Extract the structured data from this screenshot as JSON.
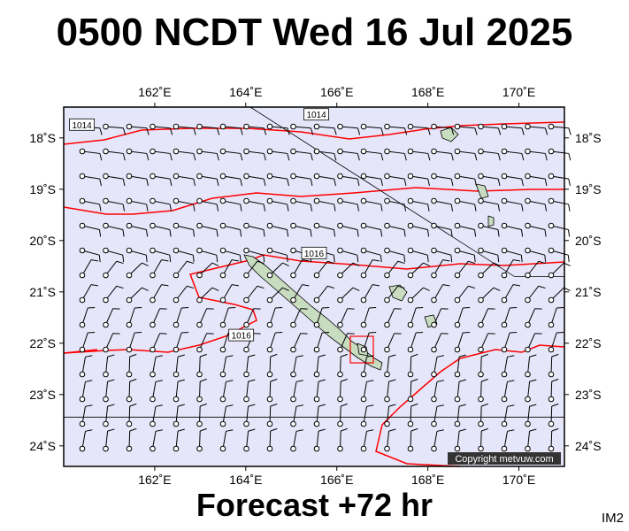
{
  "title": "0500 NCDT Wed 16 Jul 2025",
  "subtitle": "Forecast +72 hr",
  "corner_label": "IM2",
  "copyright": "Copyright metvuw.com",
  "map": {
    "lon_range": [
      160.0,
      171.0
    ],
    "lat_range": [
      -24.4,
      -17.4
    ],
    "lon_ticks": [
      {
        "value": 162,
        "label": "162˚E"
      },
      {
        "value": 164,
        "label": "164˚E"
      },
      {
        "value": 166,
        "label": "166˚E"
      },
      {
        "value": 168,
        "label": "168˚E"
      },
      {
        "value": 170,
        "label": "170˚E"
      }
    ],
    "lat_ticks": [
      {
        "value": -18,
        "label": "18˚S"
      },
      {
        "value": -19,
        "label": "19˚S"
      },
      {
        "value": -20,
        "label": "20˚S"
      },
      {
        "value": -21,
        "label": "21˚S"
      },
      {
        "value": -22,
        "label": "22˚S"
      },
      {
        "value": -23,
        "label": "23˚S"
      },
      {
        "value": -24,
        "label": "24˚S"
      }
    ],
    "colors": {
      "ocean": "#e6e6fa",
      "land": "#c8dcc0",
      "isobar": "#ff0000",
      "barb": "#000000"
    },
    "isobar_labels": [
      {
        "text": "1014",
        "lon": 160.4,
        "lat": -17.75
      },
      {
        "text": "1014",
        "lon": 165.55,
        "lat": -17.55
      },
      {
        "text": "1016",
        "lon": 165.5,
        "lat": -20.25
      },
      {
        "text": "1016",
        "lon": 163.9,
        "lat": -21.85
      }
    ]
  }
}
